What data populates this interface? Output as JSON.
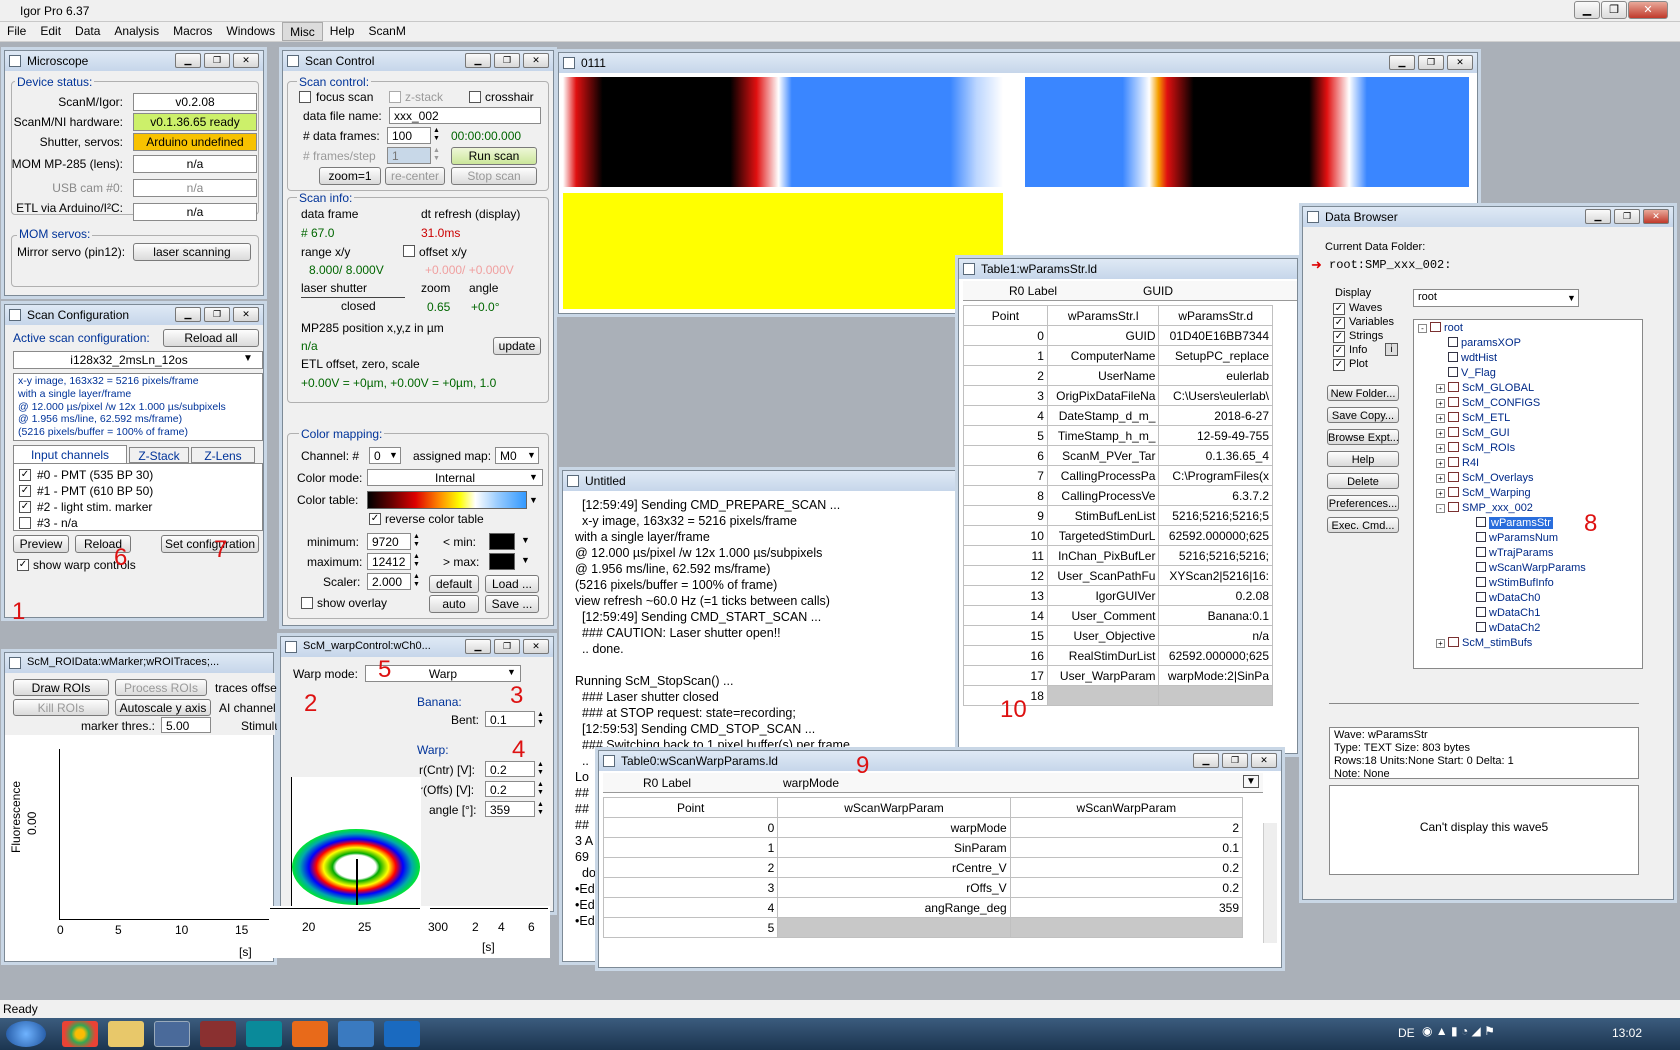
{
  "app": {
    "title": "Igor Pro 6.37"
  },
  "menu": [
    "File",
    "Edit",
    "Data",
    "Analysis",
    "Macros",
    "Windows",
    "Misc",
    "Help",
    "ScanM"
  ],
  "microscope": {
    "title": "Microscope",
    "device_status": "Device status:",
    "rows": [
      {
        "label": "ScanM/Igor:",
        "value": "v0.2.08"
      },
      {
        "label": "ScanM/NI hardware:",
        "value": "v0.1.36.65 ready"
      },
      {
        "label": "Shutter, servos:",
        "value": "Arduino undefined"
      },
      {
        "label": "MOM MP-285 (lens):",
        "value": "n/a"
      },
      {
        "label": "USB cam #0:",
        "value": "n/a"
      },
      {
        "label": "ETL via Arduino/I²C:",
        "value": "n/a"
      }
    ],
    "mom_servos": "MOM servos:",
    "mirror_label": "Mirror servo (pin12):",
    "mirror_button": "laser scanning"
  },
  "scan_config": {
    "title": "Scan Configuration",
    "active_label": "Active scan configuration:",
    "reload_all": "Reload all",
    "selected": "i128x32_2msLn_12os",
    "description": [
      "x-y image, 163x32 = 5216 pixels/frame",
      "with a single layer/frame",
      "@ 12.000 µs/pixel /w 12x 1.000 µs/subpixels",
      "@ 1.956 ms/line, 62.592 ms/frame)",
      "(5216 pixels/buffer = 100% of frame)"
    ],
    "tabs": [
      "Input channels",
      "Z-Stack",
      "Z-Lens"
    ],
    "channels": [
      {
        "label": "#0 - PMT (535 BP 30)",
        "checked": "✓"
      },
      {
        "label": "#1 - PMT (610 BP 50)",
        "checked": "✓"
      },
      {
        "label": "#2 - light stim. marker",
        "checked": "✓"
      },
      {
        "label": "#3 - n/a",
        "checked": ""
      }
    ],
    "preview": "Preview",
    "reload": "Reload",
    "set_config": "Set configuration",
    "show_warp": "show warp controls"
  },
  "scan_control": {
    "title": "Scan Control",
    "scan_control_label": "Scan control:",
    "focus_scan": "focus scan",
    "z_stack": "z-stack",
    "crosshair": "crosshair",
    "data_file_label": "data file name:",
    "data_file": "xxx_002",
    "frames_label": "# data frames:",
    "frames": "100",
    "time": "00:00:00.000",
    "frames_step_label": "# frames/step",
    "frames_step": "1",
    "run_scan": "Run scan",
    "zoom": "zoom=1",
    "recenter": "re-center",
    "stop_scan": "Stop scan",
    "scan_info": "Scan info:",
    "data_frame_label": "data frame",
    "dt_refresh_label": "dt refresh (display)",
    "data_frame_val": "#  67.0",
    "dt_refresh_val": "31.0ms",
    "range_label": "range x/y",
    "offset_label": "offset x/y",
    "range_val": "8.000/  8.000V",
    "offset_val": "+0.000/ +0.000V",
    "laser_shutter": "laser shutter",
    "zoom_label": "zoom",
    "angle_label": "angle",
    "shutter_val": "closed",
    "zoom_val": "0.65",
    "angle_val": "+0.0°",
    "mp285_label": "MP285 position x,y,z in µm",
    "mp285_val": "n/a",
    "update": "update",
    "etl_label": "ETL offset, zero, scale",
    "etl_val": "+0.00V = +0µm, +0.00V = +0µm, 1.0",
    "color_mapping": "Color mapping:",
    "channel_label": "Channel: #",
    "channel": "0",
    "assigned_label": "assigned map:",
    "assigned": "M0",
    "color_mode_label": "Color mode:",
    "color_mode": "Internal",
    "color_table_label": "Color table:",
    "reverse": "reverse color table",
    "minimum_label": "minimum:",
    "minimum": "9720",
    "maximum_label": "maximum:",
    "maximum": "12412",
    "scaler_label": "Scaler:",
    "scaler": "2.000",
    "lt_min": "< min:",
    "gt_max": "> max:",
    "default": "default",
    "load": "Load ...",
    "auto": "auto",
    "save": "Save ...",
    "show_overlay": "show overlay"
  },
  "image_window": {
    "title": "0111"
  },
  "roi": {
    "title": "ScM_ROIData:wMarker;wROITraces;...",
    "draw_rois": "Draw ROIs",
    "process_rois": "Process ROIs",
    "traces_offset": "traces offse",
    "kill_rois": "Kill ROIs",
    "autoscale": "Autoscale y axis",
    "ai_channel": "AI channel",
    "marker_label": "marker thres.:",
    "marker": "5.00",
    "stimulu": "Stimulu",
    "ylabel": "Fluorescence",
    "ytick": "0.00",
    "xticks": [
      "0",
      "5",
      "10",
      "15",
      "20",
      "25",
      "300",
      "2",
      "4",
      "6"
    ],
    "xunit1": "[s]",
    "xunit2": "[s]"
  },
  "warp": {
    "title": "ScM_warpControl:wCh0...",
    "warp_mode_label": "Warp mode:",
    "warp_mode": "Warp",
    "banana": "Banana:",
    "bent_label": "Bent:",
    "bent": "0.1",
    "warp": "Warp:",
    "rcntr_label": "r(Cntr) [V]:",
    "rcntr": "0.2",
    "roffs_label": "r(Offs) [V]:",
    "roffs": "0.2",
    "angle_label": "angle [°]:",
    "angle": "359"
  },
  "table1": {
    "title": "Table1:wParamsStr.ld",
    "r0_label": "R0 Label",
    "r0_value": "GUID",
    "headers": [
      "Point",
      "wParamsStr.l",
      "wParamsStr.d"
    ],
    "rows": [
      [
        "0",
        "GUID",
        "01D40E16BB7344"
      ],
      [
        "1",
        "ComputerName",
        "SetupPC_replace"
      ],
      [
        "2",
        "UserName",
        "eulerlab"
      ],
      [
        "3",
        "OrigPixDataFileNa",
        "C:\\Users\\eulerlab\\"
      ],
      [
        "4",
        "DateStamp_d_m_",
        "2018-6-27"
      ],
      [
        "5",
        "TimeStamp_h_m_",
        "12-59-49-755"
      ],
      [
        "6",
        "ScanM_PVer_Tar",
        "0.1.36.65_4"
      ],
      [
        "7",
        "CallingProcessPa",
        "C:\\ProgramFiles(x"
      ],
      [
        "8",
        "CallingProcessVe",
        "6.3.7.2"
      ],
      [
        "9",
        "StimBufLenList",
        "5216;5216;5216;5"
      ],
      [
        "10",
        "TargetedStimDurL",
        "62592.000000;625"
      ],
      [
        "11",
        "InChan_PixBufLer",
        "5216;5216;5216;"
      ],
      [
        "12",
        "User_ScanPathFu",
        "XYScan2|5216|16:"
      ],
      [
        "13",
        "IgorGUIVer",
        "0.2.08"
      ],
      [
        "14",
        "User_Comment",
        "Banana:0.1"
      ],
      [
        "15",
        "User_Objective",
        "n/a"
      ],
      [
        "16",
        "RealStimDurList",
        "62592.000000;625"
      ],
      [
        "17",
        "User_WarpParam",
        "warpMode:2|SinPa"
      ],
      [
        "18",
        "",
        ""
      ]
    ]
  },
  "untitled": {
    "title": "Untitled",
    "lines": [
      "  [12:59:49] Sending CMD_PREPARE_SCAN ...",
      "  x-y image, 163x32 = 5216 pixels/frame",
      "with a single layer/frame",
      "@ 12.000 µs/pixel /w 12x 1.000 µs/subpixels",
      "@ 1.956 ms/line, 62.592 ms/frame)",
      "(5216 pixels/buffer = 100% of frame)",
      "view refresh ~60.0 Hz (=1 ticks between calls)",
      "  [12:59:49] Sending CMD_START_SCAN ...",
      "  ### CAUTION: Laser shutter open!!",
      "  .. done.",
      "",
      "Running ScM_StopScan() ...",
      "  ### Laser shutter closed",
      "  ### at STOP request: state=recording;",
      "  [12:59:53] Sending CMD_STOP_SCAN ...",
      "  ### Switching back to 1 pixel buffer(s) per frame ...",
      "  ..",
      "Lo",
      "##",
      "##",
      "##",
      "3 A",
      "69",
      "  do",
      "•Edi",
      "•Edi",
      "•Edi"
    ]
  },
  "table0": {
    "title": "Table0:wScanWarpParams.ld",
    "r0_label": "R0 Label",
    "r0_value": "warpMode",
    "headers": [
      "Point",
      "wScanWarpParam",
      "wScanWarpParam"
    ],
    "rows": [
      [
        "0",
        "warpMode",
        "2"
      ],
      [
        "1",
        "SinParam",
        "0.1"
      ],
      [
        "2",
        "rCentre_V",
        "0.2"
      ],
      [
        "3",
        "rOffs_V",
        "0.2"
      ],
      [
        "4",
        "angRange_deg",
        "359"
      ],
      [
        "5",
        "",
        ""
      ]
    ]
  },
  "browser": {
    "title": "Data Browser",
    "current_label": "Current Data Folder:",
    "current": "root:SMP_xxx_002:",
    "display": "Display",
    "display_opts": [
      "Waves",
      "Variables",
      "Strings",
      "Info",
      "Plot"
    ],
    "folder_select": "root",
    "buttons": [
      "New Folder...",
      "Save Copy...",
      "Browse Expt...",
      "Help",
      "Delete",
      "Preferences...",
      "Exec. Cmd..."
    ],
    "tree_root": "root",
    "tree_items": [
      "paramsXOP",
      "wdtHist",
      "V_Flag",
      "ScM_GLOBAL",
      "ScM_CONFIGS",
      "ScM_ETL",
      "ScM_GUI",
      "ScM_ROIs",
      "R4I",
      "ScM_Overlays",
      "ScM_Warping",
      "SMP_xxx_002"
    ],
    "smp_children": [
      "wParamsStr",
      "wParamsNum",
      "wTrajParams",
      "wScanWarpParams",
      "wStimBufInfo",
      "wDataCh0",
      "wDataCh1",
      "wDataCh2"
    ],
    "last_item": "ScM_stimBufs",
    "info_lines": [
      "Wave: wParamsStr",
      "Type: TEXT   Size: 803 bytes",
      "Rows:18 Units:None Start: 0 Delta: 1",
      "Note: None"
    ],
    "cant_display": "Can't display this wave5"
  },
  "annotations": [
    "1",
    "2",
    "3",
    "4",
    "5",
    "6",
    "7",
    "8",
    "9",
    "10"
  ],
  "status": "Ready",
  "tray": {
    "lang": "DE",
    "time": "13:02"
  }
}
